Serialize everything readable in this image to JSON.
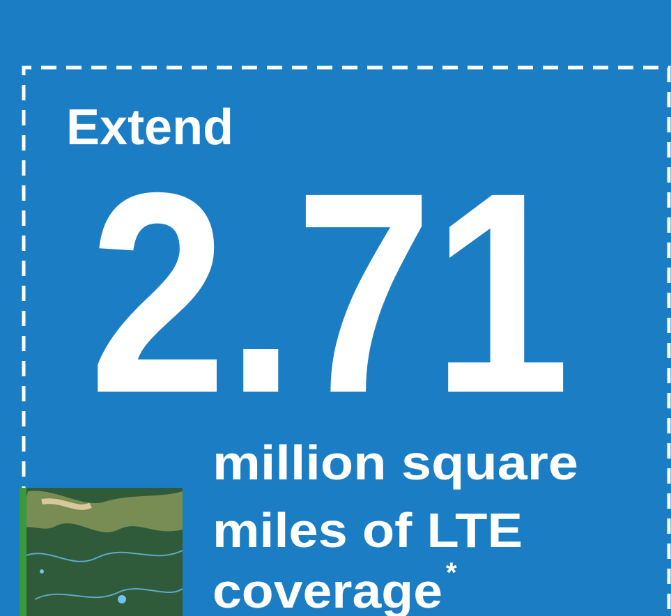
{
  "heading": "Extend",
  "figure": "2.71",
  "caption_lines": [
    "million square",
    "miles of LTE",
    "coverage"
  ],
  "footnote_mark": "*"
}
